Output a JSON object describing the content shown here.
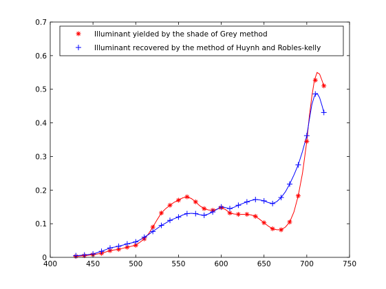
{
  "chart_data": {
    "type": "line",
    "title": "",
    "xlabel": "",
    "ylabel": "",
    "xlim": [
      400,
      750
    ],
    "ylim": [
      0,
      0.7
    ],
    "xticks": [
      400,
      450,
      500,
      550,
      600,
      650,
      700,
      750
    ],
    "xtick_labels": [
      "400",
      "450",
      "500",
      "550",
      "600",
      "650",
      "700",
      "750"
    ],
    "yticks": [
      0,
      0.1,
      0.2,
      0.3,
      0.4,
      0.5,
      0.6,
      0.7
    ],
    "ytick_labels": [
      "0",
      "0.1",
      "0.2",
      "0.3",
      "0.4",
      "0.5",
      "0.6",
      "0.7"
    ],
    "grid": false,
    "legend_position": "top",
    "series": [
      {
        "name": "Illuminant yielded by the shade of Grey method",
        "color": "#ff0000",
        "marker": "asterisk",
        "x": [
          430,
          440,
          450,
          460,
          470,
          480,
          490,
          500,
          510,
          520,
          530,
          540,
          550,
          560,
          570,
          580,
          590,
          600,
          610,
          620,
          630,
          640,
          650,
          660,
          670,
          680,
          690,
          700,
          710,
          720
        ],
        "y": [
          0.003,
          0.005,
          0.008,
          0.012,
          0.02,
          0.024,
          0.03,
          0.036,
          0.055,
          0.09,
          0.132,
          0.155,
          0.17,
          0.18,
          0.165,
          0.145,
          0.14,
          0.148,
          0.132,
          0.128,
          0.128,
          0.122,
          0.103,
          0.085,
          0.082,
          0.105,
          0.183,
          0.345,
          0.527,
          0.51
        ],
        "curve_x": [
          430,
          440,
          450,
          460,
          470,
          480,
          490,
          500,
          505,
          510,
          515,
          520,
          525,
          530,
          535,
          540,
          545,
          550,
          555,
          560,
          565,
          570,
          575,
          580,
          585,
          590,
          595,
          600,
          605,
          610,
          615,
          620,
          625,
          630,
          635,
          640,
          645,
          650,
          655,
          660,
          665,
          670,
          675,
          680,
          685,
          690,
          695,
          700,
          703,
          706,
          709,
          712,
          715,
          718,
          720
        ],
        "curve_y": [
          0.003,
          0.005,
          0.008,
          0.012,
          0.02,
          0.024,
          0.03,
          0.036,
          0.045,
          0.055,
          0.07,
          0.09,
          0.112,
          0.132,
          0.145,
          0.155,
          0.164,
          0.17,
          0.177,
          0.18,
          0.175,
          0.165,
          0.153,
          0.145,
          0.141,
          0.14,
          0.143,
          0.148,
          0.142,
          0.132,
          0.129,
          0.128,
          0.128,
          0.128,
          0.126,
          0.122,
          0.113,
          0.103,
          0.093,
          0.085,
          0.082,
          0.082,
          0.09,
          0.105,
          0.135,
          0.183,
          0.25,
          0.345,
          0.42,
          0.48,
          0.527,
          0.55,
          0.545,
          0.525,
          0.51
        ]
      },
      {
        "name": "Illuminant recovered by the method of Huynh and Robles-kelly",
        "color": "#0000ff",
        "marker": "plus",
        "x": [
          430,
          440,
          450,
          460,
          470,
          480,
          490,
          500,
          510,
          520,
          530,
          540,
          550,
          560,
          570,
          580,
          590,
          600,
          610,
          620,
          630,
          640,
          650,
          660,
          670,
          680,
          690,
          700,
          710,
          720
        ],
        "y": [
          0.005,
          0.007,
          0.01,
          0.018,
          0.028,
          0.033,
          0.04,
          0.046,
          0.06,
          0.077,
          0.095,
          0.11,
          0.12,
          0.13,
          0.13,
          0.125,
          0.135,
          0.15,
          0.145,
          0.155,
          0.165,
          0.172,
          0.168,
          0.16,
          0.178,
          0.218,
          0.275,
          0.362,
          0.486,
          0.431
        ],
        "curve_x": [
          430,
          440,
          450,
          460,
          470,
          480,
          490,
          500,
          505,
          510,
          515,
          520,
          525,
          530,
          535,
          540,
          545,
          550,
          555,
          560,
          565,
          570,
          575,
          580,
          585,
          590,
          595,
          600,
          605,
          610,
          615,
          620,
          625,
          630,
          635,
          640,
          645,
          650,
          655,
          660,
          665,
          670,
          675,
          680,
          685,
          690,
          695,
          700,
          703,
          706,
          709,
          712,
          715,
          718,
          720
        ],
        "curve_y": [
          0.005,
          0.007,
          0.01,
          0.018,
          0.028,
          0.033,
          0.04,
          0.046,
          0.052,
          0.06,
          0.068,
          0.077,
          0.086,
          0.095,
          0.102,
          0.11,
          0.115,
          0.12,
          0.126,
          0.13,
          0.131,
          0.13,
          0.127,
          0.125,
          0.129,
          0.135,
          0.143,
          0.15,
          0.148,
          0.145,
          0.149,
          0.155,
          0.16,
          0.165,
          0.169,
          0.172,
          0.171,
          0.168,
          0.163,
          0.16,
          0.166,
          0.178,
          0.195,
          0.218,
          0.245,
          0.275,
          0.315,
          0.362,
          0.41,
          0.455,
          0.48,
          0.488,
          0.475,
          0.45,
          0.431
        ]
      }
    ]
  }
}
